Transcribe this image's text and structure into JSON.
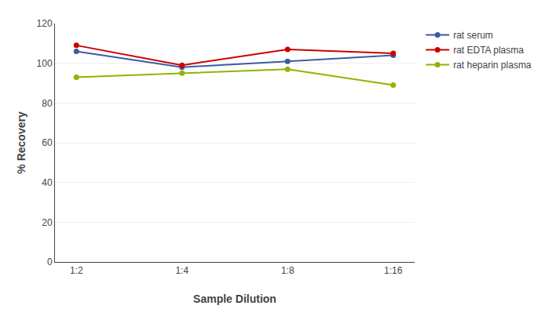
{
  "chart_data": {
    "type": "line",
    "xlabel": "Sample Dilution",
    "ylabel": "% Recovery",
    "categories": [
      "1:2",
      "1:4",
      "1:8",
      "1:16"
    ],
    "series": [
      {
        "name": "rat serum",
        "color": "#3B5BA5",
        "values": [
          106,
          98,
          101,
          104
        ]
      },
      {
        "name": "rat EDTA plasma",
        "color": "#CC0000",
        "values": [
          109,
          99,
          107,
          105
        ]
      },
      {
        "name": "rat heparin plasma",
        "color": "#8DB600",
        "values": [
          93,
          95,
          97,
          89
        ]
      }
    ],
    "ylim": [
      0,
      120
    ],
    "yticks": [
      0,
      20,
      40,
      60,
      80,
      100,
      120
    ],
    "grid": true,
    "legend": "right",
    "marker": "circle"
  }
}
